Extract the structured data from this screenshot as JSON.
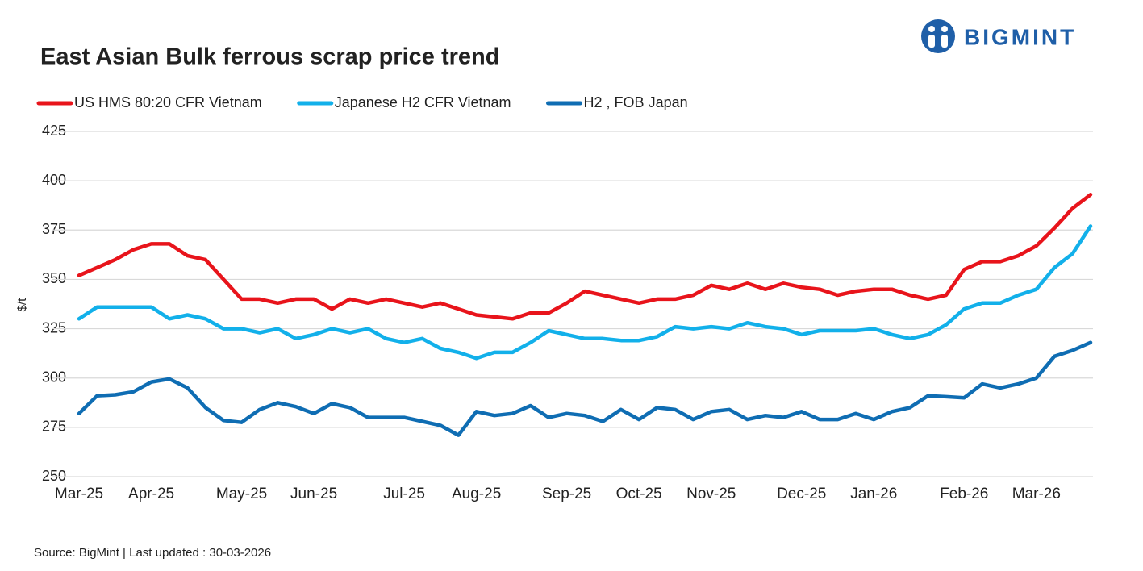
{
  "logo": "BIGMINT",
  "chart_data": {
    "type": "line",
    "title": "East Asian Bulk ferrous scrap price trend",
    "y_label": "$/t",
    "source": "Source: BigMint  | Last updated : 30-03-2026",
    "categories": [
      "Mar-25",
      null,
      null,
      null,
      "Apr-25",
      null,
      null,
      null,
      null,
      "May-25",
      null,
      null,
      null,
      "Jun-25",
      null,
      null,
      null,
      null,
      "Jul-25",
      null,
      null,
      null,
      "Aug-25",
      null,
      null,
      null,
      null,
      "Sep-25",
      null,
      null,
      null,
      "Oct-25",
      null,
      null,
      null,
      "Nov-25",
      null,
      null,
      null,
      null,
      "Dec-25",
      null,
      null,
      null,
      "Jan-26",
      null,
      null,
      null,
      null,
      "Feb-26",
      null,
      null,
      null,
      "Mar-26",
      null,
      null,
      null
    ],
    "series": [
      {
        "name": "US HMS 80:20 CFR Vietnam",
        "color": "#e8141b",
        "values": [
          352,
          356,
          360,
          365,
          368,
          368,
          362,
          360,
          350,
          340,
          340,
          338,
          340,
          340,
          335,
          340,
          338,
          340,
          338,
          336,
          338,
          335,
          332,
          331,
          330,
          333,
          333,
          338,
          344,
          342,
          340,
          338,
          340,
          340,
          342,
          347,
          345,
          348,
          345,
          348,
          346,
          345,
          342,
          344,
          345,
          345,
          342,
          340,
          342,
          355,
          359,
          359,
          362,
          367,
          376,
          386,
          393
        ]
      },
      {
        "name": "Japanese H2 CFR Vietnam",
        "color": "#12b0ea",
        "values": [
          330,
          336,
          336,
          336,
          336,
          330,
          332,
          330,
          325,
          325,
          323,
          325,
          320,
          322,
          325,
          323,
          325,
          320,
          318,
          320,
          315,
          313,
          310,
          313,
          313,
          318,
          324,
          322,
          320,
          320,
          319,
          319,
          321,
          326,
          325,
          326,
          325,
          328,
          326,
          325,
          322,
          324,
          324,
          324,
          325,
          322,
          320,
          322,
          327,
          335,
          338,
          338,
          342,
          345,
          356,
          363,
          377
        ]
      },
      {
        "name": "H2 , FOB Japan",
        "color": "#0f6db3",
        "values": [
          282,
          291,
          291.5,
          293,
          298,
          299.5,
          295,
          285,
          278.5,
          277.5,
          284,
          287.5,
          285.5,
          282,
          287,
          285,
          280,
          280,
          280,
          278,
          276,
          271,
          283,
          281,
          282,
          286,
          280,
          282,
          281,
          278,
          284,
          279,
          285,
          284,
          279,
          283,
          284,
          279,
          281,
          280,
          283,
          279,
          279,
          282,
          279,
          283,
          285,
          291,
          290.5,
          290,
          297,
          295,
          297,
          300,
          311,
          314,
          318
        ]
      }
    ],
    "ylim": [
      250,
      425
    ],
    "yticks": [
      250,
      275,
      300,
      325,
      350,
      375,
      400,
      425
    ],
    "grid": true
  }
}
